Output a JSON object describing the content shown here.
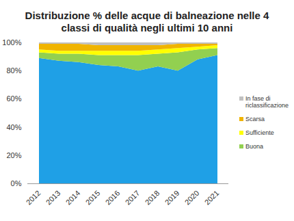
{
  "chart_data": {
    "type": "area",
    "stacked": true,
    "legend": "right",
    "grid": false,
    "title": "Distribuzione % delle acque di balneazione nelle  4 classi di qualità negli ultimi 10 anni",
    "categories": [
      "2012",
      "2013",
      "2014",
      "2015",
      "2016",
      "2017",
      "2018",
      "2019",
      "2020",
      "2021"
    ],
    "ylim": [
      0,
      100
    ],
    "yticks": [
      {
        "value": 0,
        "label": "0%"
      },
      {
        "value": 20,
        "label": "20%"
      },
      {
        "value": 40,
        "label": "40%"
      },
      {
        "value": 60,
        "label": "60%"
      },
      {
        "value": 80,
        "label": "80%"
      },
      {
        "value": 100,
        "label": "100%"
      }
    ],
    "series": [
      {
        "name": null,
        "color": "#1fa0e6",
        "values": [
          89,
          87,
          86,
          84,
          83,
          80,
          83,
          80,
          88,
          91
        ]
      },
      {
        "name": "Buona",
        "color": "#92d050",
        "values": [
          4,
          5,
          6,
          7,
          8,
          11,
          9,
          13,
          7,
          5
        ]
      },
      {
        "name": "Sufficiente",
        "color": "#ffff00",
        "values": [
          2,
          2,
          2,
          3,
          3,
          3,
          3,
          3,
          2,
          2
        ]
      },
      {
        "name": "Scarsa",
        "color": "#f0b400",
        "values": [
          4,
          5,
          5,
          4,
          4,
          4,
          3,
          3,
          2,
          1
        ]
      },
      {
        "name": "In fase di riclassificazione",
        "color": "#c0c0c0",
        "values": [
          1,
          1,
          1,
          2,
          2,
          2,
          2,
          1,
          1,
          1
        ]
      }
    ]
  }
}
